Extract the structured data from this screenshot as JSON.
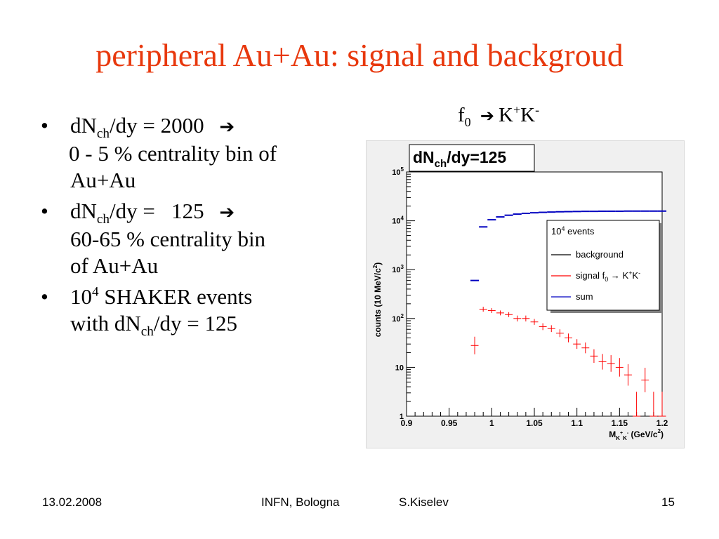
{
  "slide": {
    "title": "peripheral Au+Au: signal and backgroud",
    "bullets": [
      {
        "lead": "dN",
        "sub": "ch",
        "rest": "/dy = 2000",
        "cont1": "0 - 5 % centrality bin of",
        "cont2": "Au+Au"
      },
      {
        "lead": "dN",
        "sub": "ch",
        "rest": "/dy =   125",
        "cont1": "60-65 % centrality bin",
        "cont2": "of Au+Au"
      },
      {
        "lead": "10",
        "sup": "4",
        "rest": " SHAKER events",
        "cont_lead": "with dN",
        "cont_sub": "ch",
        "cont_rest": "/dy = 125"
      }
    ],
    "plot_heading": {
      "lead": "f",
      "sub": "0",
      "tail": "K",
      "sup1": "+",
      "tail2": "K",
      "sup2": "-"
    },
    "footer": {
      "date": "13.02.2008",
      "venue": "INFN, Bologna",
      "author": "S.Kiselev",
      "page": "15"
    }
  },
  "chart_data": {
    "type": "scatter",
    "title_parts": [
      "dN",
      "ch",
      "/dy=125"
    ],
    "xlabel_parts": [
      "M",
      "K",
      "+",
      "K",
      "-",
      " (GeV/c",
      "2",
      ")"
    ],
    "ylabel_parts": [
      "counts (10 MeV/c",
      "2",
      ")"
    ],
    "xlim": [
      0.9,
      1.2
    ],
    "ylim": [
      1,
      100000
    ],
    "log_y": true,
    "xticks": [
      "0.9",
      "0.95",
      "1",
      "1.05",
      "1.1",
      "1.15",
      "1.2"
    ],
    "xtick_values": [
      0.9,
      0.95,
      1.0,
      1.05,
      1.1,
      1.15,
      1.2
    ],
    "yticks": [
      {
        "value": 1,
        "base": "1",
        "exp": ""
      },
      {
        "value": 10,
        "base": "10",
        "exp": ""
      },
      {
        "value": 100,
        "base": "10",
        "exp": "2"
      },
      {
        "value": 1000,
        "base": "10",
        "exp": "3"
      },
      {
        "value": 10000,
        "base": "10",
        "exp": "4"
      },
      {
        "value": 100000,
        "base": "10",
        "exp": "5"
      }
    ],
    "legend": {
      "placement": "top-right",
      "header_base": "10",
      "header_sup": "4",
      "header_rest": " events",
      "entries": [
        {
          "name": "background",
          "color": "#000000"
        },
        {
          "name_parts": [
            "signal f",
            "0",
            " → K",
            "+",
            "K",
            "-"
          ],
          "color": "#ff0000"
        },
        {
          "name": "sum",
          "color": "#0000c0"
        }
      ]
    },
    "series": [
      {
        "name": "sum",
        "color": "#0000c0",
        "style": "step",
        "points": [
          [
            0.98,
            600
          ],
          [
            0.99,
            7500
          ],
          [
            1.0,
            10500
          ],
          [
            1.01,
            12000
          ],
          [
            1.02,
            13000
          ],
          [
            1.03,
            13700
          ],
          [
            1.04,
            14200
          ],
          [
            1.05,
            14600
          ],
          [
            1.06,
            14900
          ],
          [
            1.07,
            15100
          ],
          [
            1.08,
            15300
          ],
          [
            1.09,
            15400
          ],
          [
            1.1,
            15500
          ],
          [
            1.11,
            15600
          ],
          [
            1.12,
            15600
          ],
          [
            1.13,
            15700
          ],
          [
            1.14,
            15700
          ],
          [
            1.15,
            15700
          ],
          [
            1.16,
            15800
          ],
          [
            1.17,
            15800
          ],
          [
            1.18,
            15800
          ],
          [
            1.19,
            15800
          ],
          [
            1.2,
            15800
          ]
        ]
      },
      {
        "name": "signal",
        "color": "#ff0000",
        "style": "error",
        "points": [
          [
            0.98,
            28,
            0.18
          ],
          [
            0.99,
            155,
            0.05
          ],
          [
            1.0,
            145,
            0.05
          ],
          [
            1.01,
            130,
            0.05
          ],
          [
            1.02,
            120,
            0.05
          ],
          [
            1.03,
            100,
            0.06
          ],
          [
            1.04,
            100,
            0.06
          ],
          [
            1.05,
            85,
            0.06
          ],
          [
            1.06,
            68,
            0.07
          ],
          [
            1.07,
            62,
            0.07
          ],
          [
            1.08,
            50,
            0.08
          ],
          [
            1.09,
            40,
            0.09
          ],
          [
            1.1,
            30,
            0.1
          ],
          [
            1.11,
            25,
            0.11
          ],
          [
            1.12,
            17,
            0.14
          ],
          [
            1.13,
            13,
            0.16
          ],
          [
            1.14,
            12,
            0.17
          ],
          [
            1.15,
            10,
            0.19
          ],
          [
            1.16,
            7,
            0.22
          ],
          [
            1.18,
            5.5,
            0.25
          ],
          [
            1.19,
            1,
            0.5
          ],
          [
            1.2,
            1,
            0.5
          ],
          [
            1.17,
            1,
            0.5
          ],
          [
            1.2,
            1,
            0.5
          ]
        ]
      }
    ]
  }
}
